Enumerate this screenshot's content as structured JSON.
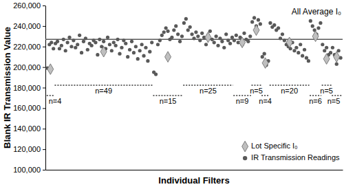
{
  "chart_data": {
    "type": "scatter",
    "x_label": "Individual Filters",
    "y_label": "Blank IR Transmission Value",
    "xlim": [
      0,
      148
    ],
    "ylim": [
      100000,
      260000
    ],
    "yticks": [
      {
        "value": 100000,
        "label": "100,000"
      },
      {
        "value": 120000,
        "label": "120,000"
      },
      {
        "value": 140000,
        "label": "140,000"
      },
      {
        "value": 160000,
        "label": "160,000"
      },
      {
        "value": 180000,
        "label": "180,000"
      },
      {
        "value": 200000,
        "label": "200,000"
      },
      {
        "value": 220000,
        "label": "220,000"
      },
      {
        "value": 240000,
        "label": "240,000"
      },
      {
        "value": 260000,
        "label": "260,000"
      }
    ],
    "tick_labels": "y",
    "grid": false,
    "legend": "lower right",
    "annotations": [
      {
        "text": "All Average I₀",
        "y": 227000
      }
    ],
    "groups": [
      {
        "label": "n=4",
        "x": [
          0.6,
          4.4
        ]
      },
      {
        "label": "n=49",
        "x": [
          4.6,
          53.4
        ]
      },
      {
        "label": "n=15",
        "x": [
          53.6,
          68.4
        ]
      },
      {
        "label": "n=25",
        "x": [
          68.6,
          93.4
        ]
      },
      {
        "label": "n=9",
        "x": [
          93.6,
          102.4
        ]
      },
      {
        "label": "n=5",
        "x": [
          102.6,
          107.4
        ]
      },
      {
        "label": "n=4",
        "x": [
          107.6,
          111.4
        ]
      },
      {
        "label": "n=20",
        "x": [
          111.6,
          131.4
        ]
      },
      {
        "label": "n=6",
        "x": [
          131.6,
          137.4
        ]
      },
      {
        "label": "n=5",
        "x": [
          137.6,
          142.4
        ]
      },
      {
        "label": "n=5",
        "x": [
          142.6,
          147.4
        ]
      }
    ],
    "series": [
      {
        "name": "Lot Specific I₀",
        "color": "#bfbfbf",
        "marker": "diamond",
        "x": [
          2.5,
          29,
          61,
          81,
          98,
          105,
          109.5,
          121.5,
          134.5,
          140,
          145
        ],
        "values": [
          198000,
          215000,
          210000,
          229000,
          224000,
          236000,
          204000,
          224000,
          230000,
          208000,
          210000
        ]
      },
      {
        "name": "IR Transmission Readings",
        "color": "#595959",
        "marker": "circle",
        "x": [
          1,
          2,
          3,
          4,
          5,
          6,
          7,
          8,
          9,
          10,
          11,
          12,
          13,
          14,
          15,
          16,
          17,
          18,
          19,
          20,
          21,
          22,
          23,
          24,
          25,
          26,
          27,
          28,
          29,
          30,
          31,
          32,
          33,
          34,
          35,
          36,
          37,
          38,
          39,
          40,
          41,
          42,
          43,
          44,
          45,
          46,
          47,
          48,
          49,
          50,
          51,
          52,
          53,
          54,
          55,
          56,
          57,
          58,
          59,
          60,
          61,
          62,
          63,
          64,
          65,
          66,
          67,
          68,
          69,
          70,
          71,
          72,
          73,
          74,
          75,
          76,
          77,
          78,
          79,
          80,
          81,
          82,
          83,
          84,
          85,
          86,
          87,
          88,
          89,
          90,
          91,
          92,
          93,
          94,
          95,
          96,
          97,
          98,
          99,
          100,
          101,
          102,
          103,
          104,
          105,
          106,
          107,
          108,
          109,
          110,
          111,
          112,
          113,
          114,
          115,
          116,
          117,
          118,
          119,
          120,
          121,
          122,
          123,
          124,
          125,
          126,
          127,
          128,
          129,
          130,
          131,
          132,
          133,
          134,
          135,
          136,
          137,
          138,
          139,
          140,
          141,
          142,
          143,
          144,
          145,
          146,
          147
        ],
        "values": [
          199000,
          222000,
          224000,
          218000,
          223000,
          225000,
          218000,
          221000,
          227000,
          216000,
          224000,
          229000,
          220000,
          226000,
          219000,
          222000,
          231000,
          214000,
          225000,
          228000,
          217000,
          223000,
          221000,
          226000,
          224000,
          212000,
          227000,
          220000,
          225000,
          218000,
          229000,
          222000,
          216000,
          224000,
          221000,
          227000,
          213000,
          219000,
          226000,
          223000,
          210000,
          217000,
          225000,
          214000,
          220000,
          208000,
          216000,
          222000,
          211000,
          219000,
          206000,
          215000,
          224000,
          195000,
          193000,
          222000,
          226000,
          231000,
          234000,
          238000,
          235000,
          227000,
          229000,
          236000,
          240000,
          232000,
          225000,
          230000,
          243000,
          247000,
          236000,
          239000,
          232000,
          228000,
          234000,
          230000,
          226000,
          233000,
          229000,
          222000,
          231000,
          235000,
          227000,
          224000,
          230000,
          221000,
          228000,
          225000,
          219000,
          232000,
          226000,
          223000,
          229000,
          226000,
          231000,
          224000,
          229000,
          222000,
          233000,
          227000,
          225000,
          230000,
          244000,
          248000,
          240000,
          246000,
          242000,
          210000,
          213000,
          202000,
          206000,
          243000,
          239000,
          241000,
          236000,
          238000,
          228000,
          232000,
          226000,
          222000,
          220000,
          218000,
          224000,
          216000,
          219000,
          214000,
          222000,
          211000,
          217000,
          209000,
          206000,
          245000,
          240000,
          236000,
          232000,
          238000,
          243000,
          222000,
          216000,
          219000,
          212000,
          214000,
          219000,
          212000,
          203000,
          216000,
          209000
        ]
      }
    ]
  }
}
